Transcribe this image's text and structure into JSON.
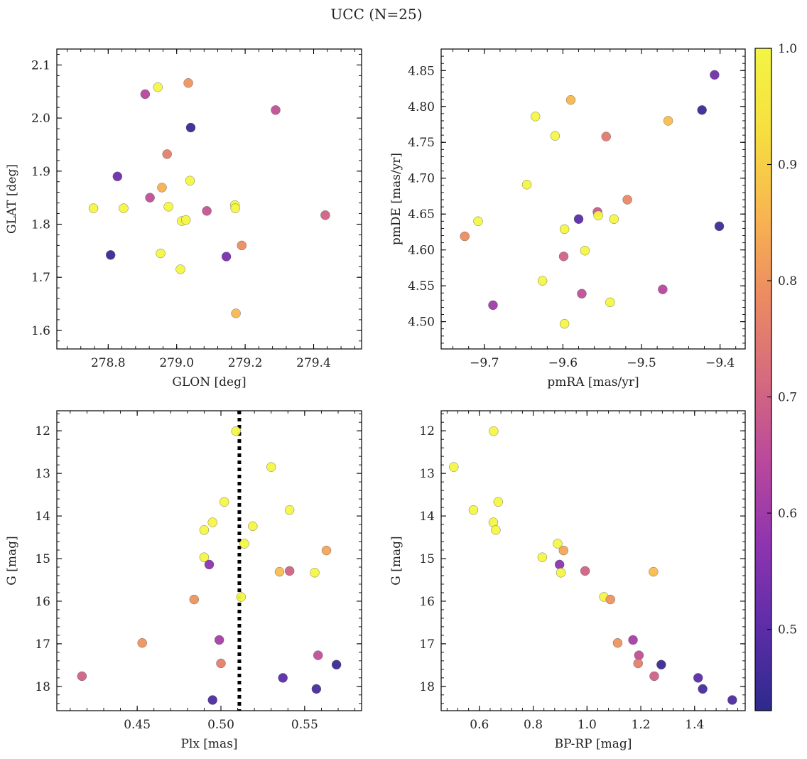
{
  "figure": {
    "title": "UCC (N=25)"
  },
  "colorbar": {
    "range": [
      0.43,
      1.0
    ],
    "ticks": [
      0.5,
      0.6,
      0.7,
      0.8,
      0.9,
      1.0
    ],
    "tick_labels": [
      "0.5",
      "0.6",
      "0.7",
      "0.8",
      "0.9",
      "1.0"
    ],
    "colormap": "plasma (truncated)",
    "stops": [
      "#2d2a8c",
      "#5c2da8",
      "#8e34b0",
      "#b9489c",
      "#d66a7e",
      "#ec8b62",
      "#f8b650",
      "#f6df3f",
      "#f4f544"
    ]
  },
  "chart_data": [
    {
      "id": "glon-glat",
      "type": "scatter",
      "xlabel": "GLON [deg]",
      "ylabel": "GLAT [deg]",
      "xlim": [
        278.65,
        279.54
      ],
      "ylim": [
        1.565,
        2.13
      ],
      "x_ticks": [
        278.8,
        279.0,
        279.2,
        279.4
      ],
      "x_tick_labels": [
        "278.8",
        "279.0",
        "279.2",
        "279.4"
      ],
      "y_ticks": [
        1.6,
        1.7,
        1.8,
        1.9,
        2.0,
        2.1
      ],
      "y_tick_labels": [
        "1.6",
        "1.7",
        "1.8",
        "1.9",
        "2.0",
        "2.1"
      ],
      "points": [
        {
          "x": 278.757,
          "y": 1.83,
          "c": 1.0
        },
        {
          "x": 278.807,
          "y": 1.742,
          "c": 0.45
        },
        {
          "x": 278.827,
          "y": 1.89,
          "c": 0.52
        },
        {
          "x": 278.845,
          "y": 1.83,
          "c": 1.0
        },
        {
          "x": 278.908,
          "y": 2.045,
          "c": 0.64
        },
        {
          "x": 278.922,
          "y": 1.85,
          "c": 0.66
        },
        {
          "x": 278.945,
          "y": 2.058,
          "c": 1.0
        },
        {
          "x": 278.953,
          "y": 1.745,
          "c": 1.0
        },
        {
          "x": 278.957,
          "y": 1.869,
          "c": 0.85
        },
        {
          "x": 278.972,
          "y": 1.932,
          "c": 0.76
        },
        {
          "x": 278.976,
          "y": 1.833,
          "c": 1.0
        },
        {
          "x": 279.011,
          "y": 1.715,
          "c": 1.0
        },
        {
          "x": 279.015,
          "y": 1.806,
          "c": 1.0
        },
        {
          "x": 279.027,
          "y": 1.808,
          "c": 1.0
        },
        {
          "x": 279.034,
          "y": 2.066,
          "c": 0.8
        },
        {
          "x": 279.039,
          "y": 1.882,
          "c": 1.0
        },
        {
          "x": 279.041,
          "y": 1.982,
          "c": 0.45
        },
        {
          "x": 279.088,
          "y": 1.825,
          "c": 0.67
        },
        {
          "x": 279.145,
          "y": 1.739,
          "c": 0.54
        },
        {
          "x": 279.17,
          "y": 1.836,
          "c": 1.0
        },
        {
          "x": 279.171,
          "y": 1.83,
          "c": 1.0
        },
        {
          "x": 279.173,
          "y": 1.632,
          "c": 0.86
        },
        {
          "x": 279.19,
          "y": 1.76,
          "c": 0.79
        },
        {
          "x": 279.289,
          "y": 2.015,
          "c": 0.66
        },
        {
          "x": 279.434,
          "y": 1.817,
          "c": 0.7
        }
      ]
    },
    {
      "id": "pmra-pmde",
      "type": "scatter",
      "xlabel": "pmRA [mas/yr]",
      "ylabel": "pmDE [mas/yr]",
      "xlim": [
        -9.755,
        -9.368
      ],
      "ylim": [
        4.462,
        4.88
      ],
      "x_ticks": [
        -9.7,
        -9.6,
        -9.5,
        -9.4
      ],
      "x_tick_labels": [
        "−9.7",
        "−9.6",
        "−9.5",
        "−9.4"
      ],
      "y_ticks": [
        4.5,
        4.55,
        4.6,
        4.65,
        4.7,
        4.75,
        4.8,
        4.85
      ],
      "y_tick_labels": [
        "4.50",
        "4.55",
        "4.60",
        "4.65",
        "4.70",
        "4.75",
        "4.80",
        "4.85"
      ],
      "points": [
        {
          "x": -9.725,
          "y": 4.619,
          "c": 0.79
        },
        {
          "x": -9.708,
          "y": 4.64,
          "c": 1.0
        },
        {
          "x": -9.689,
          "y": 4.523,
          "c": 0.6
        },
        {
          "x": -9.646,
          "y": 4.691,
          "c": 1.0
        },
        {
          "x": -9.635,
          "y": 4.786,
          "c": 1.0
        },
        {
          "x": -9.626,
          "y": 4.557,
          "c": 1.0
        },
        {
          "x": -9.61,
          "y": 4.759,
          "c": 1.0
        },
        {
          "x": -9.598,
          "y": 4.629,
          "c": 1.0
        },
        {
          "x": -9.599,
          "y": 4.591,
          "c": 0.7
        },
        {
          "x": -9.598,
          "y": 4.497,
          "c": 1.0
        },
        {
          "x": -9.59,
          "y": 4.809,
          "c": 0.86
        },
        {
          "x": -9.58,
          "y": 4.643,
          "c": 0.5
        },
        {
          "x": -9.576,
          "y": 4.539,
          "c": 0.66
        },
        {
          "x": -9.572,
          "y": 4.599,
          "c": 1.0
        },
        {
          "x": -9.556,
          "y": 4.653,
          "c": 0.68
        },
        {
          "x": -9.555,
          "y": 4.648,
          "c": 1.0
        },
        {
          "x": -9.545,
          "y": 4.758,
          "c": 0.75
        },
        {
          "x": -9.54,
          "y": 4.527,
          "c": 1.0
        },
        {
          "x": -9.535,
          "y": 4.643,
          "c": 1.0
        },
        {
          "x": -9.518,
          "y": 4.67,
          "c": 0.78
        },
        {
          "x": -9.473,
          "y": 4.545,
          "c": 0.64
        },
        {
          "x": -9.466,
          "y": 4.78,
          "c": 0.87
        },
        {
          "x": -9.423,
          "y": 4.795,
          "c": 0.45
        },
        {
          "x": -9.407,
          "y": 4.844,
          "c": 0.53
        },
        {
          "x": -9.401,
          "y": 4.633,
          "c": 0.46
        }
      ]
    },
    {
      "id": "plx-g",
      "type": "scatter",
      "xlabel": "Plx [mas]",
      "ylabel": "G [mag]",
      "xlim": [
        0.402,
        0.584
      ],
      "ylim": [
        18.57,
        11.53
      ],
      "y_inverted": true,
      "vline": {
        "x": 0.511,
        "style": "dotted"
      },
      "x_ticks": [
        0.45,
        0.5,
        0.55
      ],
      "x_tick_labels": [
        "0.45",
        "0.50",
        "0.55"
      ],
      "y_ticks": [
        12,
        13,
        14,
        15,
        16,
        17,
        18
      ],
      "y_tick_labels": [
        "12",
        "13",
        "14",
        "15",
        "16",
        "17",
        "18"
      ],
      "points": [
        {
          "x": 0.417,
          "y": 17.76,
          "c": 0.7
        },
        {
          "x": 0.453,
          "y": 16.98,
          "c": 0.8
        },
        {
          "x": 0.484,
          "y": 15.96,
          "c": 0.8
        },
        {
          "x": 0.49,
          "y": 14.33,
          "c": 1.0
        },
        {
          "x": 0.49,
          "y": 14.97,
          "c": 1.0
        },
        {
          "x": 0.493,
          "y": 15.14,
          "c": 0.57
        },
        {
          "x": 0.495,
          "y": 14.15,
          "c": 1.0
        },
        {
          "x": 0.495,
          "y": 18.32,
          "c": 0.48
        },
        {
          "x": 0.499,
          "y": 16.91,
          "c": 0.61
        },
        {
          "x": 0.5,
          "y": 17.46,
          "c": 0.76
        },
        {
          "x": 0.502,
          "y": 13.67,
          "c": 1.0
        },
        {
          "x": 0.509,
          "y": 12.01,
          "c": 1.0
        },
        {
          "x": 0.512,
          "y": 15.9,
          "c": 1.0
        },
        {
          "x": 0.514,
          "y": 14.65,
          "c": 1.0
        },
        {
          "x": 0.519,
          "y": 14.24,
          "c": 1.0
        },
        {
          "x": 0.53,
          "y": 12.85,
          "c": 1.0
        },
        {
          "x": 0.535,
          "y": 15.31,
          "c": 0.87
        },
        {
          "x": 0.537,
          "y": 17.8,
          "c": 0.5
        },
        {
          "x": 0.541,
          "y": 13.86,
          "c": 1.0
        },
        {
          "x": 0.541,
          "y": 15.29,
          "c": 0.7
        },
        {
          "x": 0.556,
          "y": 15.33,
          "c": 1.0
        },
        {
          "x": 0.557,
          "y": 18.06,
          "c": 0.47
        },
        {
          "x": 0.558,
          "y": 17.27,
          "c": 0.66
        },
        {
          "x": 0.563,
          "y": 14.81,
          "c": 0.83
        },
        {
          "x": 0.569,
          "y": 17.49,
          "c": 0.45
        }
      ]
    },
    {
      "id": "bprp-g",
      "type": "scatter",
      "xlabel": "BP-RP [mag]",
      "ylabel": "G [mag]",
      "xlim": [
        0.458,
        1.588
      ],
      "ylim": [
        18.57,
        11.53
      ],
      "y_inverted": true,
      "x_ticks": [
        0.6,
        0.8,
        1.0,
        1.2,
        1.4
      ],
      "x_tick_labels": [
        "0.6",
        "0.8",
        "1.0",
        "1.2",
        "1.4"
      ],
      "y_ticks": [
        12,
        13,
        14,
        15,
        16,
        17,
        18
      ],
      "y_tick_labels": [
        "12",
        "13",
        "14",
        "15",
        "16",
        "17",
        "18"
      ],
      "points": [
        {
          "x": 0.505,
          "y": 12.85,
          "c": 1.0
        },
        {
          "x": 0.578,
          "y": 13.86,
          "c": 1.0
        },
        {
          "x": 0.653,
          "y": 12.01,
          "c": 1.0
        },
        {
          "x": 0.652,
          "y": 14.15,
          "c": 1.0
        },
        {
          "x": 0.661,
          "y": 14.33,
          "c": 1.0
        },
        {
          "x": 0.67,
          "y": 13.67,
          "c": 1.0
        },
        {
          "x": 0.834,
          "y": 14.97,
          "c": 1.0
        },
        {
          "x": 0.891,
          "y": 14.65,
          "c": 1.0
        },
        {
          "x": 0.898,
          "y": 15.14,
          "c": 0.57
        },
        {
          "x": 0.903,
          "y": 15.33,
          "c": 1.0
        },
        {
          "x": 0.913,
          "y": 14.81,
          "c": 0.83
        },
        {
          "x": 0.993,
          "y": 15.29,
          "c": 0.7
        },
        {
          "x": 1.063,
          "y": 15.9,
          "c": 1.0
        },
        {
          "x": 1.087,
          "y": 15.96,
          "c": 0.8
        },
        {
          "x": 1.114,
          "y": 16.98,
          "c": 0.8
        },
        {
          "x": 1.171,
          "y": 16.91,
          "c": 0.61
        },
        {
          "x": 1.193,
          "y": 17.27,
          "c": 0.66
        },
        {
          "x": 1.19,
          "y": 17.46,
          "c": 0.76
        },
        {
          "x": 1.247,
          "y": 15.31,
          "c": 0.87
        },
        {
          "x": 1.25,
          "y": 17.76,
          "c": 0.7
        },
        {
          "x": 1.276,
          "y": 17.49,
          "c": 0.45
        },
        {
          "x": 1.413,
          "y": 17.8,
          "c": 0.5
        },
        {
          "x": 1.43,
          "y": 18.06,
          "c": 0.47
        },
        {
          "x": 1.54,
          "y": 18.32,
          "c": 0.48
        }
      ]
    }
  ]
}
